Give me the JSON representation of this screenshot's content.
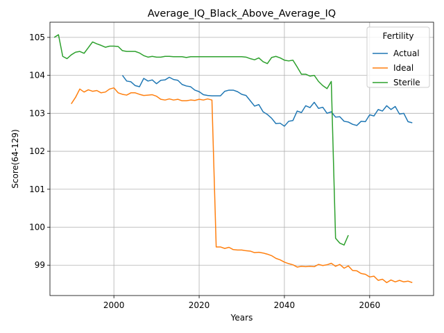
{
  "chart_data": {
    "type": "line",
    "title": "Average_IQ_Black_Above_Average_IQ",
    "xlabel": "Years",
    "ylabel": "Score(64-129)",
    "xlim": [
      1985,
      2075
    ],
    "ylim": [
      98.2,
      105.4
    ],
    "xticks": [
      2000,
      2020,
      2040,
      2060
    ],
    "yticks": [
      99,
      100,
      101,
      102,
      103,
      104,
      105
    ],
    "grid": true,
    "legend": {
      "title": "Fertility",
      "placement": "top-right"
    },
    "series": [
      {
        "name": "Actual",
        "color": "#1f77b4",
        "x": [
          2002,
          2003,
          2004,
          2005,
          2006,
          2007,
          2008,
          2009,
          2010,
          2011,
          2012,
          2013,
          2014,
          2015,
          2016,
          2017,
          2018,
          2019,
          2020,
          2021,
          2022,
          2023,
          2024,
          2025,
          2026,
          2027,
          2028,
          2029,
          2030,
          2031,
          2032,
          2033,
          2034,
          2035,
          2036,
          2037,
          2038,
          2039,
          2040,
          2041,
          2042,
          2043,
          2044,
          2045,
          2046,
          2047,
          2048,
          2049,
          2050,
          2051,
          2052,
          2053,
          2054,
          2055,
          2056,
          2057,
          2058,
          2059,
          2060,
          2061,
          2062,
          2063,
          2064,
          2065,
          2066,
          2067,
          2068,
          2069,
          2070
        ],
        "y": [
          104.0,
          103.85,
          103.83,
          103.73,
          103.7,
          103.92,
          103.85,
          103.88,
          103.78,
          103.87,
          103.88,
          103.95,
          103.89,
          103.87,
          103.76,
          103.72,
          103.7,
          103.61,
          103.57,
          103.49,
          103.47,
          103.46,
          103.46,
          103.46,
          103.58,
          103.61,
          103.61,
          103.57,
          103.5,
          103.47,
          103.33,
          103.19,
          103.23,
          103.04,
          102.97,
          102.87,
          102.73,
          102.74,
          102.66,
          102.79,
          102.81,
          103.06,
          103.02,
          103.2,
          103.15,
          103.29,
          103.13,
          103.16,
          103.0,
          103.04,
          102.9,
          102.91,
          102.79,
          102.77,
          102.71,
          102.68,
          102.79,
          102.78,
          102.96,
          102.93,
          103.1,
          103.06,
          103.2,
          103.1,
          103.18,
          102.98,
          103.0,
          102.78,
          102.75
        ]
      },
      {
        "name": "Ideal",
        "color": "#ff7f0e",
        "x": [
          1990,
          1991,
          1992,
          1993,
          1994,
          1995,
          1996,
          1997,
          1998,
          1999,
          2000,
          2001,
          2002,
          2003,
          2004,
          2005,
          2006,
          2007,
          2008,
          2009,
          2010,
          2011,
          2012,
          2013,
          2014,
          2015,
          2016,
          2017,
          2018,
          2019,
          2020,
          2021,
          2022,
          2023,
          2024,
          2025,
          2026,
          2027,
          2028,
          2029,
          2030,
          2031,
          2032,
          2033,
          2034,
          2035,
          2036,
          2037,
          2038,
          2039,
          2040,
          2041,
          2042,
          2043,
          2044,
          2045,
          2046,
          2047,
          2048,
          2049,
          2050,
          2051,
          2052,
          2053,
          2054,
          2055,
          2056,
          2057,
          2058,
          2059,
          2060,
          2061,
          2062,
          2063,
          2064,
          2065,
          2066,
          2067,
          2068,
          2069,
          2070
        ],
        "y": [
          103.25,
          103.42,
          103.64,
          103.56,
          103.62,
          103.58,
          103.6,
          103.54,
          103.56,
          103.64,
          103.67,
          103.54,
          103.5,
          103.48,
          103.54,
          103.54,
          103.5,
          103.47,
          103.48,
          103.49,
          103.45,
          103.37,
          103.35,
          103.38,
          103.35,
          103.37,
          103.33,
          103.33,
          103.35,
          103.34,
          103.37,
          103.35,
          103.38,
          103.35,
          99.48,
          99.48,
          99.44,
          99.47,
          99.41,
          99.4,
          99.4,
          99.38,
          99.37,
          99.33,
          99.34,
          99.32,
          99.29,
          99.25,
          99.18,
          99.14,
          99.08,
          99.04,
          99.01,
          98.95,
          98.97,
          98.96,
          98.97,
          98.96,
          99.02,
          98.99,
          99.01,
          99.05,
          98.97,
          99.02,
          98.92,
          98.98,
          98.86,
          98.85,
          98.78,
          98.76,
          98.69,
          98.71,
          98.6,
          98.63,
          98.54,
          98.61,
          98.56,
          98.6,
          98.56,
          98.58,
          98.54
        ]
      },
      {
        "name": "Sterile",
        "color": "#2ca02c",
        "x": [
          1986,
          1987,
          1988,
          1989,
          1990,
          1991,
          1992,
          1993,
          1994,
          1995,
          1996,
          1997,
          1998,
          1999,
          2000,
          2001,
          2002,
          2003,
          2004,
          2005,
          2006,
          2007,
          2008,
          2009,
          2010,
          2011,
          2012,
          2013,
          2014,
          2015,
          2016,
          2017,
          2018,
          2019,
          2020,
          2021,
          2022,
          2023,
          2024,
          2025,
          2026,
          2027,
          2028,
          2029,
          2030,
          2031,
          2032,
          2033,
          2034,
          2035,
          2036,
          2037,
          2038,
          2039,
          2040,
          2041,
          2042,
          2043,
          2044,
          2045,
          2046,
          2047,
          2048,
          2049,
          2050,
          2051,
          2052,
          2053,
          2054,
          2055
        ],
        "y": [
          105.0,
          105.07,
          104.5,
          104.44,
          104.54,
          104.61,
          104.63,
          104.58,
          104.73,
          104.88,
          104.83,
          104.79,
          104.74,
          104.77,
          104.77,
          104.76,
          104.65,
          104.63,
          104.63,
          104.63,
          104.59,
          104.52,
          104.48,
          104.5,
          104.48,
          104.48,
          104.5,
          104.5,
          104.49,
          104.49,
          104.49,
          104.47,
          104.49,
          104.49,
          104.49,
          104.49,
          104.49,
          104.49,
          104.49,
          104.49,
          104.49,
          104.49,
          104.49,
          104.49,
          104.49,
          104.48,
          104.44,
          104.41,
          104.46,
          104.36,
          104.31,
          104.47,
          104.5,
          104.46,
          104.4,
          104.38,
          104.4,
          104.22,
          104.03,
          104.03,
          103.98,
          104.0,
          103.84,
          103.73,
          103.65,
          103.84,
          99.71,
          99.58,
          99.53,
          99.79
        ]
      }
    ]
  }
}
